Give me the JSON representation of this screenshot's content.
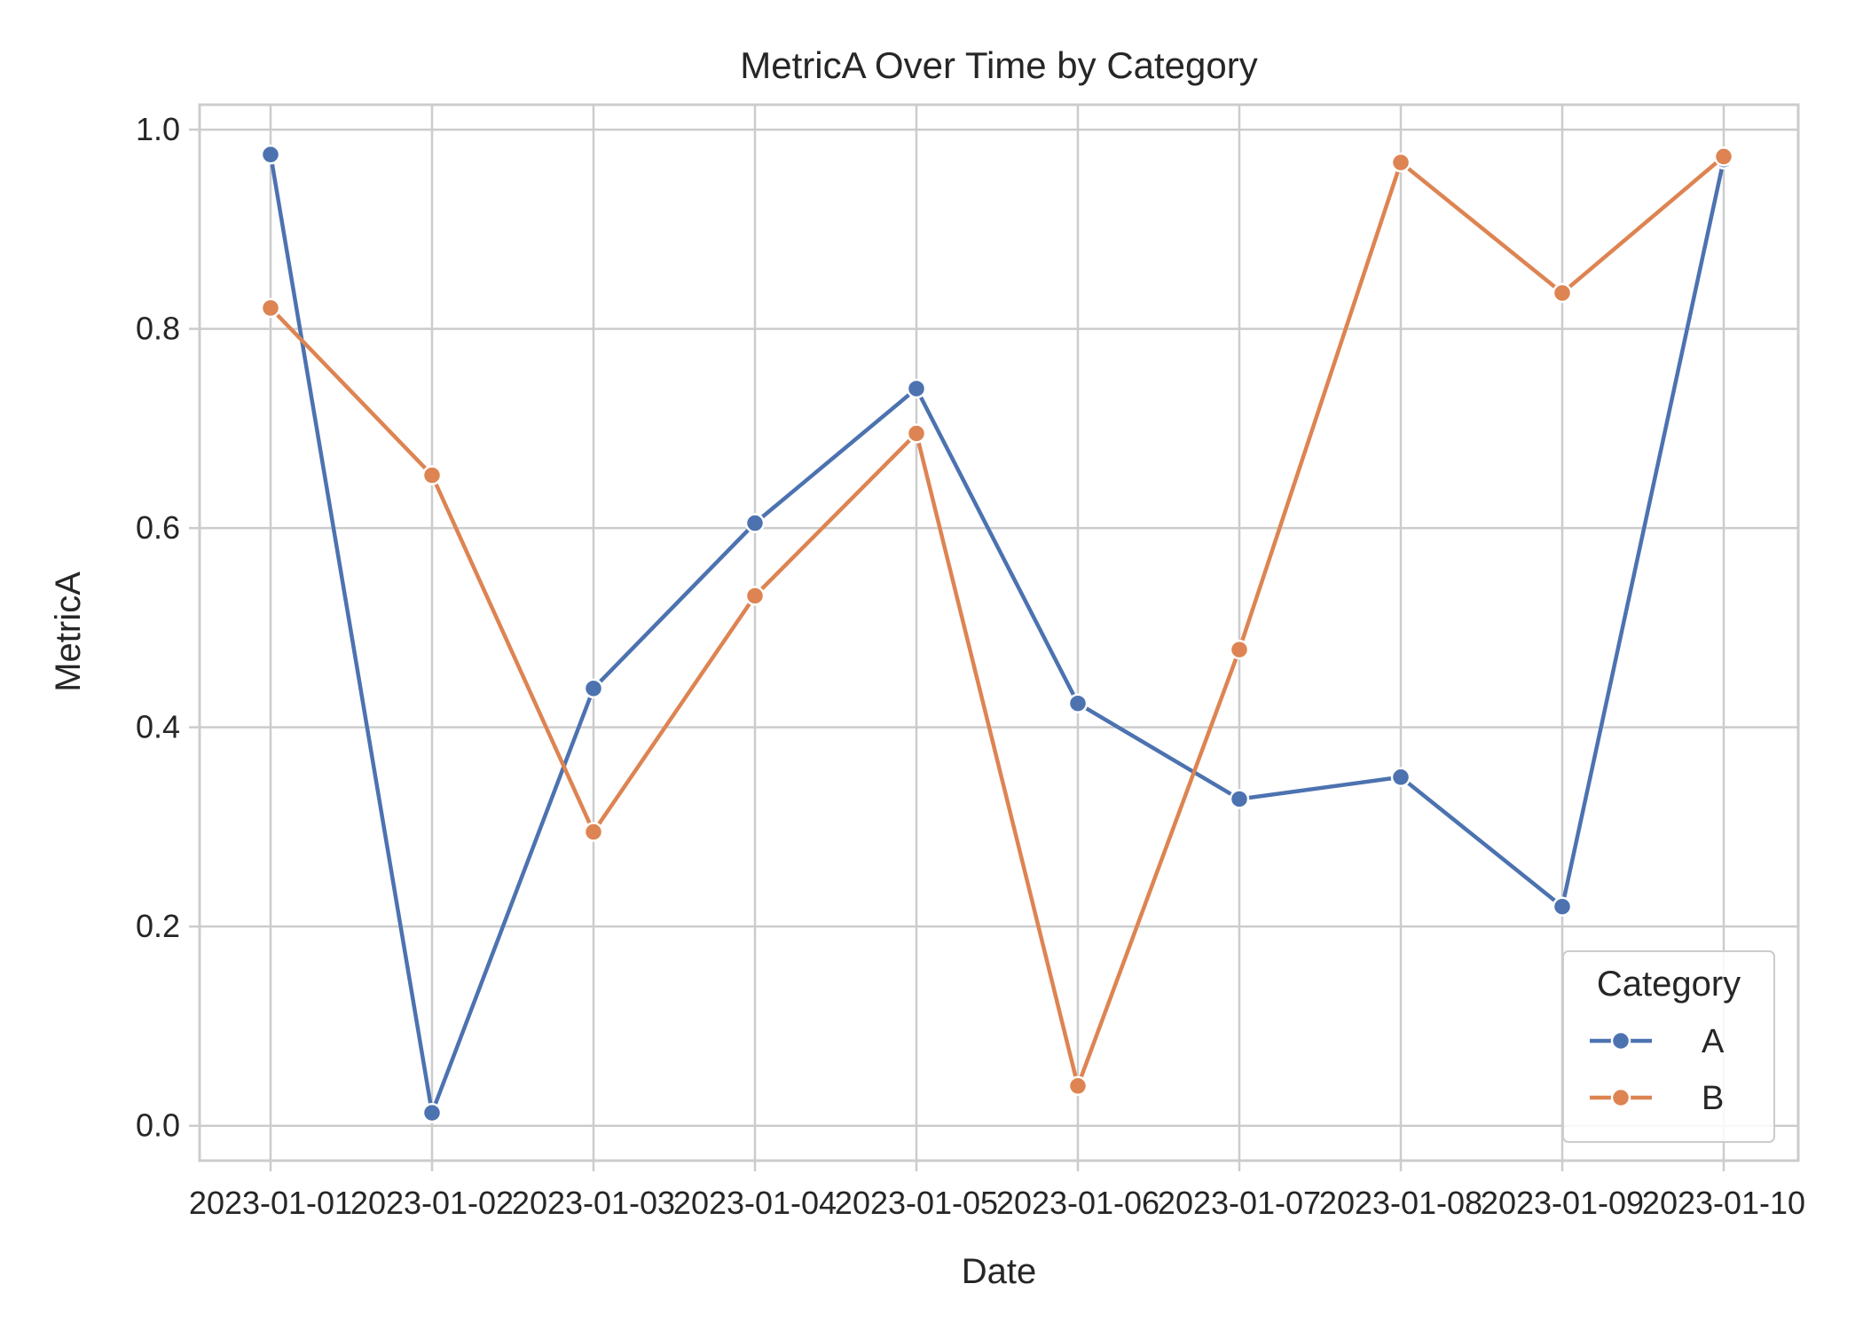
{
  "chart_data": {
    "type": "line",
    "title": "MetricA Over Time by Category",
    "xlabel": "Date",
    "ylabel": "MetricA",
    "x": [
      "2023-01-01",
      "2023-01-02",
      "2023-01-03",
      "2023-01-04",
      "2023-01-05",
      "2023-01-06",
      "2023-01-07",
      "2023-01-08",
      "2023-01-09",
      "2023-01-10"
    ],
    "ylim": [
      -0.035,
      1.025
    ],
    "yticks": [
      0.0,
      0.2,
      0.4,
      0.6,
      0.8,
      1.0
    ],
    "ytick_labels": [
      "0.0",
      "0.2",
      "0.4",
      "0.6",
      "0.8",
      "1.0"
    ],
    "grid": true,
    "legend": {
      "title": "Category",
      "placement": "lower-right"
    },
    "series": [
      {
        "name": "A",
        "color": "#4c72b0",
        "values": [
          0.975,
          0.013,
          0.439,
          0.605,
          0.74,
          0.424,
          0.328,
          0.35,
          0.22,
          0.97
        ]
      },
      {
        "name": "B",
        "color": "#dd8452",
        "values": [
          0.821,
          0.653,
          0.295,
          0.532,
          0.695,
          0.04,
          0.478,
          0.967,
          0.836,
          0.973
        ]
      }
    ]
  }
}
